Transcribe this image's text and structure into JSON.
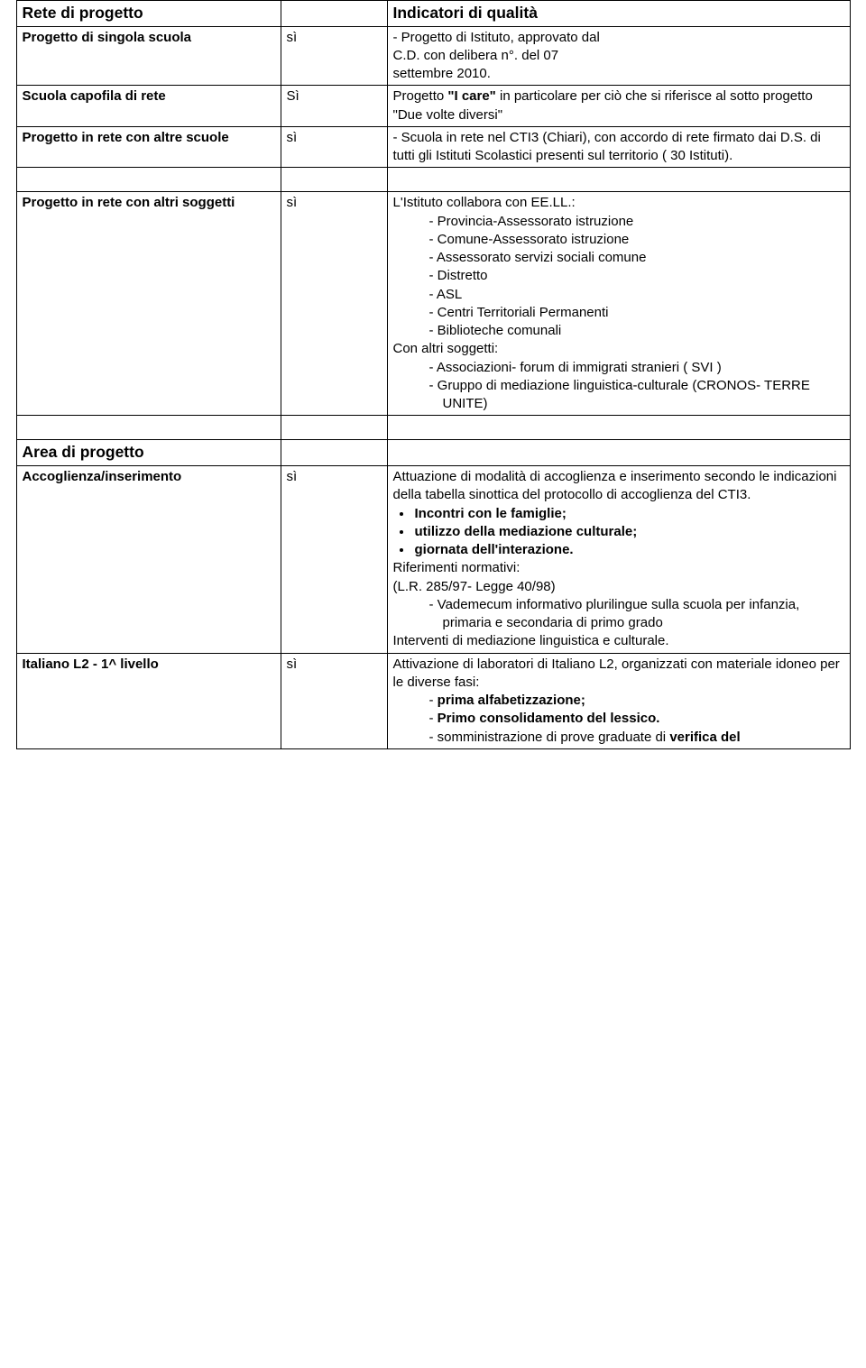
{
  "table": {
    "header": {
      "col1": "Rete di progetto",
      "col3": "Indicatori di qualità"
    },
    "r1": {
      "label": "Progetto di singola scuola",
      "val": "sì",
      "line1a": "- Progetto di Istituto, approvato dal",
      "line1b": "C.D. con delibera n°.          del 07",
      "line1c": "settembre 2010."
    },
    "r2": {
      "label": "Scuola capofila di rete",
      "val": "Sì",
      "text1": " Progetto ",
      "bold": "\"I care\"",
      "text2": " in particolare per ciò che si riferisce al sotto progetto \"Due volte diversi\""
    },
    "r3": {
      "label": "Progetto in rete con altre scuole",
      "val": "sì",
      "text": "- Scuola in rete nel CTI3 (Chiari), con accordo di rete firmato dai D.S. di tutti gli Istituti Scolastici presenti sul territorio ( 30 Istituti)."
    },
    "r4": {
      "label": "Progetto in rete con altri soggetti",
      "val": "sì",
      "intro": "L'Istituto collabora con EE.LL.:",
      "items": [
        "Provincia-Assessorato istruzione",
        "Comune-Assessorato istruzione",
        "Assessorato servizi sociali comune",
        "Distretto",
        "ASL",
        "Centri Territoriali Permanenti",
        "Biblioteche comunali"
      ],
      "sub": "Con altri soggetti:",
      "subitems": [
        "Associazioni- forum di immigrati stranieri  ( SVI )",
        "Gruppo di mediazione linguistica-culturale (CRONOS- TERRE UNITE)"
      ]
    },
    "area_hdr": "Area di progetto",
    "r5": {
      "label": "Accoglienza/inserimento",
      "val": "sì",
      "p1": "Attuazione  di modalità di accoglienza e inserimento secondo le indicazioni della tabella sinottica del protocollo di accoglienza  del CTI3.",
      "bullets": [
        "Incontri con le famiglie;",
        "utilizzo della mediazione culturale;",
        "giornata dell'interazione."
      ],
      "p2": "Riferimenti normativi:",
      "p3": "(L.R. 285/97- Legge 40/98)",
      "dash": "Vademecum informativo plurilingue sulla scuola  per infanzia, primaria e secondaria di primo grado",
      "p4": "Interventi di mediazione linguistica e culturale."
    },
    "r6": {
      "label": "Italiano L2   - 1^ livello",
      "val": "sì",
      "p1": "Attivazione di laboratori di Italiano L2, organizzati con materiale idoneo per le diverse fasi:",
      "items": [
        {
          "text": "prima alfabetizzazione;",
          "bold": true
        },
        {
          "text": "Primo consolidamento del lessico.",
          "bold": true
        },
        {
          "pre": "somministrazione di prove graduate di ",
          "bold_tail": "verifica del"
        }
      ]
    }
  }
}
